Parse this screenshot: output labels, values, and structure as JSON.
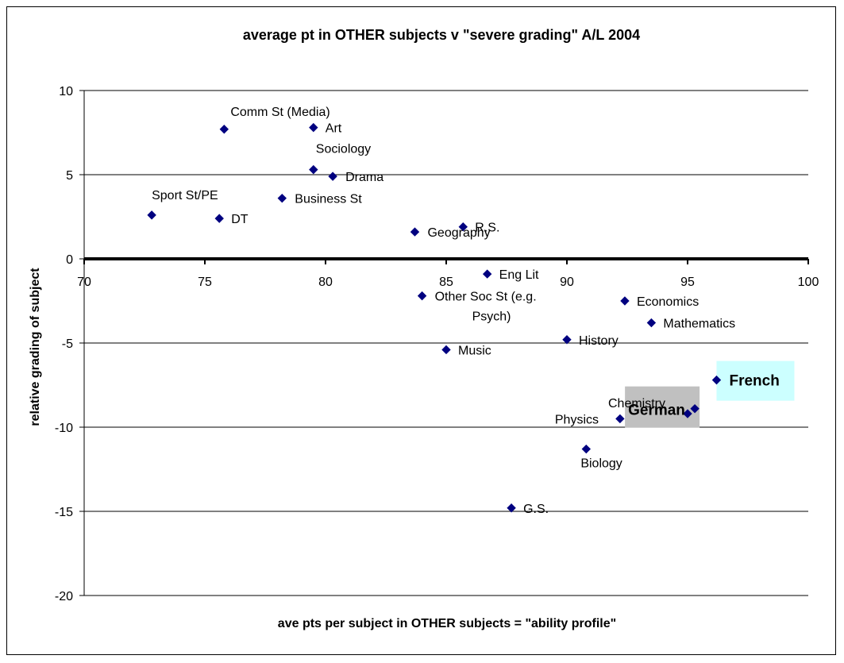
{
  "chart_data": {
    "type": "scatter",
    "title": "average pt in OTHER subjects v \"severe grading\" A/L 2004",
    "xlabel": "ave pts per subject in OTHER subjects = \"ability profile\"",
    "ylabel": "relative grading of subject",
    "xlim": [
      70,
      100
    ],
    "ylim": [
      -20,
      10
    ],
    "xticks": [
      "70",
      "75",
      "80",
      "85",
      "90",
      "95",
      "100"
    ],
    "yticks": [
      "10",
      "5",
      "0",
      "-5",
      "-10",
      "-15",
      "-20"
    ],
    "grid": "horizontal",
    "marker_color": "#000080",
    "points": [
      {
        "label": "Comm St (Media)",
        "x": 75.8,
        "y": 7.7
      },
      {
        "label": "Art",
        "x": 79.5,
        "y": 7.8
      },
      {
        "label": "Sociology",
        "x": 79.5,
        "y": 5.3
      },
      {
        "label": "Drama",
        "x": 80.3,
        "y": 4.9
      },
      {
        "label": "Sport St/PE",
        "x": 72.8,
        "y": 2.6
      },
      {
        "label": "DT",
        "x": 75.6,
        "y": 2.4
      },
      {
        "label": "Business St",
        "x": 78.2,
        "y": 3.6
      },
      {
        "label": "R.S.",
        "x": 85.7,
        "y": 1.9
      },
      {
        "label": "Geography",
        "x": 83.7,
        "y": 1.6
      },
      {
        "label": "Eng Lit",
        "x": 86.7,
        "y": -0.9
      },
      {
        "label": "Other Soc St (e.g. Psych)",
        "x": 84.0,
        "y": -2.2
      },
      {
        "label": "Music",
        "x": 85.0,
        "y": -5.4
      },
      {
        "label": "Economics",
        "x": 92.4,
        "y": -2.5
      },
      {
        "label": "Mathematics",
        "x": 93.5,
        "y": -3.8
      },
      {
        "label": "History",
        "x": 90.0,
        "y": -4.8
      },
      {
        "label": "French",
        "x": 96.2,
        "y": -7.2,
        "highlight": "#ccffff"
      },
      {
        "label": "German",
        "x": 95.3,
        "y": -8.9,
        "highlight": "#c0c0c0"
      },
      {
        "label": "Chemistry",
        "x": 95.0,
        "y": -9.2
      },
      {
        "label": "Physics",
        "x": 92.2,
        "y": -9.5
      },
      {
        "label": "Biology",
        "x": 90.8,
        "y": -11.3
      },
      {
        "label": "G.S.",
        "x": 87.7,
        "y": -14.8
      }
    ]
  }
}
